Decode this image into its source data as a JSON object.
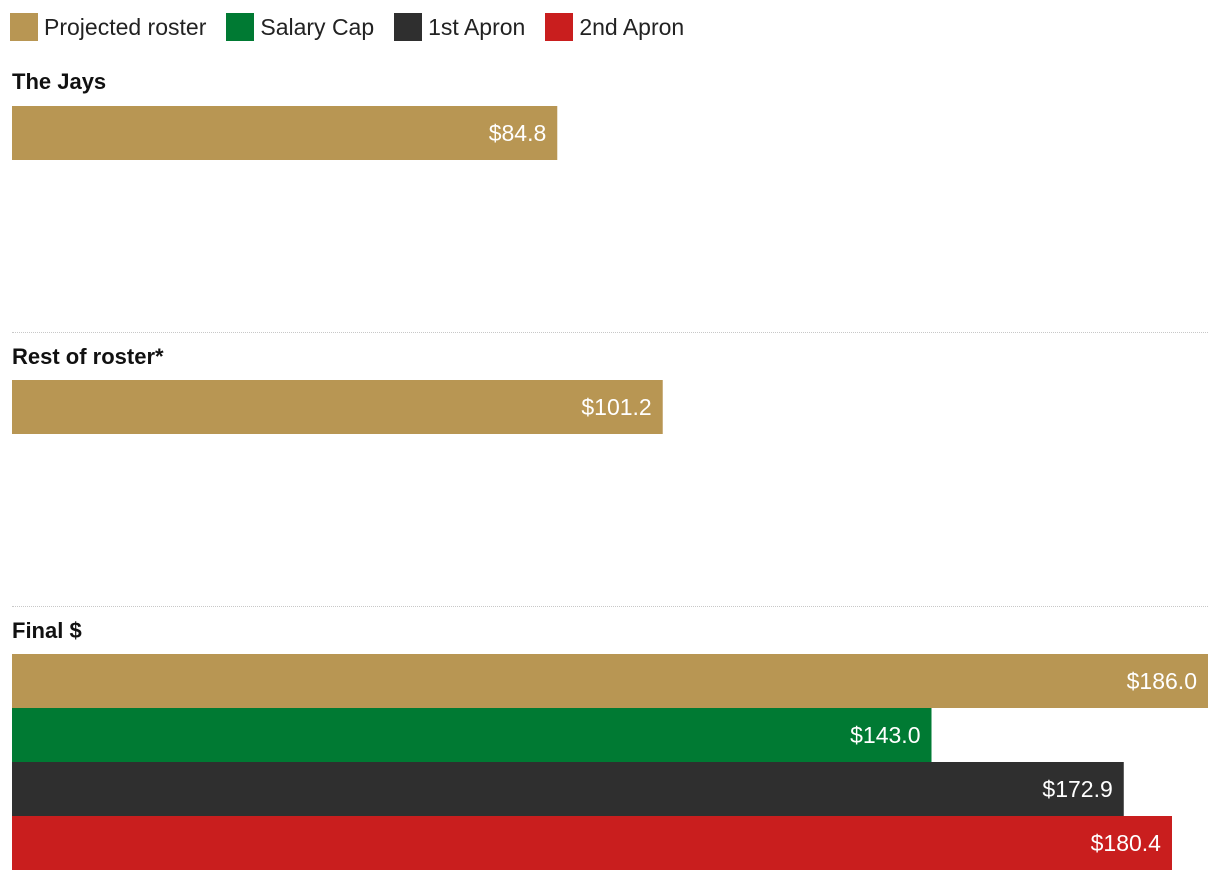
{
  "chart_data": {
    "type": "bar",
    "orientation": "horizontal",
    "xlim": [
      0,
      186.0
    ],
    "grid": false,
    "legend_placement": "top-left",
    "value_prefix": "$",
    "series": [
      {
        "name": "Projected roster",
        "color": "#b89653"
      },
      {
        "name": "Salary Cap",
        "color": "#007a33"
      },
      {
        "name": "1st Apron",
        "color": "#2f2f2f"
      },
      {
        "name": "2nd Apron",
        "color": "#c91e1e"
      }
    ],
    "groups": [
      {
        "label": "The Jays",
        "values": [
          84.8,
          null,
          null,
          null
        ]
      },
      {
        "label": "Rest of roster*",
        "values": [
          101.2,
          null,
          null,
          null
        ]
      },
      {
        "label": "Final $",
        "values": [
          186.0,
          143.0,
          172.9,
          180.4
        ]
      }
    ]
  }
}
